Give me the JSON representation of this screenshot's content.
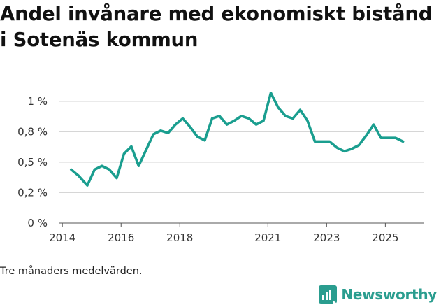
{
  "chart_data": {
    "type": "line",
    "title": "Andel invånare med ekonomiskt bistånd i Sotenäs kommun",
    "xlabel": "",
    "ylabel": "",
    "ylim": [
      0,
      1
    ],
    "xlim": [
      2013.9,
      2026.3
    ],
    "x_ticks": [
      2014,
      2016,
      2018,
      2021,
      2023,
      2025
    ],
    "x_tick_labels": [
      "2014",
      "2016",
      "2018",
      "2021",
      "2023",
      "2025"
    ],
    "y_ticks": [
      0,
      0.25,
      0.5,
      0.75,
      1
    ],
    "y_tick_labels": [
      "0 %",
      "0,2 %",
      "0,5 %",
      "0,8 %",
      "1 %"
    ],
    "series": [
      {
        "name": "Andel invånare med ekonomiskt bistånd",
        "color": "#1a9e8f",
        "points": [
          [
            2014.3,
            0.44
          ],
          [
            2014.55,
            0.39
          ],
          [
            2014.85,
            0.31
          ],
          [
            2015.1,
            0.44
          ],
          [
            2015.35,
            0.47
          ],
          [
            2015.6,
            0.44
          ],
          [
            2015.85,
            0.37
          ],
          [
            2016.1,
            0.57
          ],
          [
            2016.35,
            0.63
          ],
          [
            2016.6,
            0.47
          ],
          [
            2016.85,
            0.6
          ],
          [
            2017.1,
            0.73
          ],
          [
            2017.35,
            0.76
          ],
          [
            2017.6,
            0.74
          ],
          [
            2017.85,
            0.81
          ],
          [
            2018.1,
            0.86
          ],
          [
            2018.35,
            0.79
          ],
          [
            2018.6,
            0.71
          ],
          [
            2018.85,
            0.68
          ],
          [
            2019.1,
            0.86
          ],
          [
            2019.35,
            0.88
          ],
          [
            2019.6,
            0.81
          ],
          [
            2019.85,
            0.84
          ],
          [
            2020.1,
            0.88
          ],
          [
            2020.35,
            0.86
          ],
          [
            2020.6,
            0.81
          ],
          [
            2020.85,
            0.84
          ],
          [
            2021.1,
            1.07
          ],
          [
            2021.35,
            0.95
          ],
          [
            2021.6,
            0.88
          ],
          [
            2021.85,
            0.86
          ],
          [
            2022.1,
            0.93
          ],
          [
            2022.35,
            0.84
          ],
          [
            2022.6,
            0.67
          ],
          [
            2022.85,
            0.67
          ],
          [
            2023.1,
            0.67
          ],
          [
            2023.35,
            0.62
          ],
          [
            2023.6,
            0.59
          ],
          [
            2023.85,
            0.61
          ],
          [
            2024.1,
            0.64
          ],
          [
            2024.35,
            0.72
          ],
          [
            2024.6,
            0.81
          ],
          [
            2024.85,
            0.7
          ],
          [
            2025.1,
            0.7
          ],
          [
            2025.35,
            0.7
          ],
          [
            2025.6,
            0.67
          ]
        ]
      }
    ]
  },
  "footnote": "Tre månaders medelvärden.",
  "brand": {
    "name": "Newsworthy",
    "icon": "newsworthy-logo-icon",
    "color": "#2a9d8f"
  }
}
